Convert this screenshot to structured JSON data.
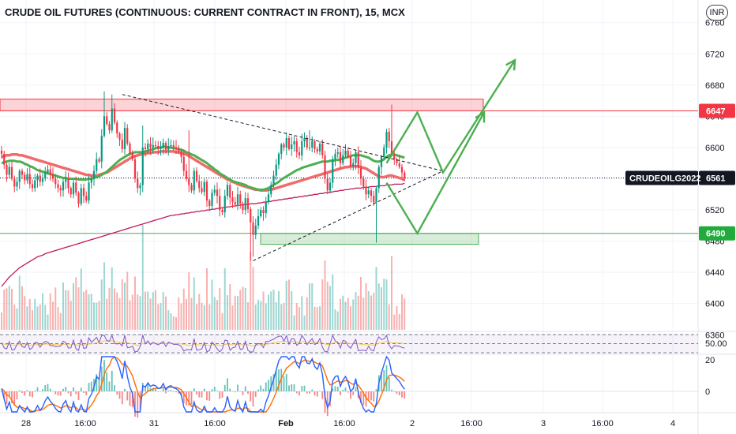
{
  "chart_data": {
    "type": "candlestick",
    "title": "CRUDE OIL FUTURES (CONTINUOUS: CURRENT CONTRACT IN FRONT), 15, MCX",
    "currency": "INR",
    "symbol_label": "CRUDEOILG2022",
    "last_price": 6561,
    "ylim": [
      6332,
      6787
    ],
    "y_ticks": [
      6760,
      6720,
      6680,
      6640,
      6600,
      6560,
      6520,
      6480,
      6440,
      6400,
      6360
    ],
    "price_badges": [
      {
        "label": "6647",
        "value": 6647,
        "color": "#f23645"
      },
      {
        "label": "6561",
        "value": 6561,
        "color": "#131722"
      },
      {
        "label": "6490",
        "value": 6490,
        "color": "#22ab3d"
      }
    ],
    "x_ticks": [
      "28",
      "16:00",
      "31",
      "16:00",
      "Feb",
      "16:00",
      "2",
      "16:00",
      "3",
      "16:00",
      "4"
    ],
    "zones": [
      {
        "name": "resistance",
        "low": 6647,
        "high": 6662,
        "color": "#f23645"
      },
      {
        "name": "support",
        "low": 6476,
        "high": 6490,
        "color": "#4caf50"
      }
    ],
    "price_closes": [
      6592,
      6578,
      6565,
      6575,
      6560,
      6550,
      6556,
      6570,
      6565,
      6558,
      6566,
      6553,
      6548,
      6558,
      6564,
      6556,
      6560,
      6568,
      6572,
      6565,
      6560,
      6553,
      6548,
      6545,
      6556,
      6560,
      6548,
      6540,
      6555,
      6542,
      6528,
      6548,
      6538,
      6532,
      6555,
      6560,
      6570,
      6585,
      6582,
      6615,
      6640,
      6630,
      6622,
      6650,
      6632,
      6618,
      6610,
      6598,
      6625,
      6605,
      6592,
      6585,
      6560,
      6548,
      6552,
      6600,
      6598,
      6605,
      6600,
      6603,
      6602,
      6598,
      6600,
      6606,
      6597,
      6602,
      6603,
      6600,
      6598,
      6595,
      6588,
      6570,
      6560,
      6552,
      6545,
      6570,
      6557,
      6548,
      6543,
      6556,
      6532,
      6525,
      6542,
      6546,
      6538,
      6520,
      6517,
      6538,
      6552,
      6536,
      6530,
      6527,
      6540,
      6528,
      6520,
      6535,
      6521,
      6504,
      6488,
      6500,
      6512,
      6520,
      6516,
      6530,
      6540,
      6552,
      6564,
      6578,
      6592,
      6604,
      6600,
      6612,
      6598,
      6604,
      6608,
      6594,
      6590,
      6608,
      6612,
      6600,
      6600,
      6608,
      6598,
      6595,
      6605,
      6590,
      6560,
      6545,
      6555,
      6585,
      6592,
      6594,
      6580,
      6590,
      6596,
      6588,
      6576,
      6580,
      6594,
      6574,
      6560,
      6550,
      6540,
      6545,
      6538,
      6530,
      6548,
      6575,
      6588,
      6600,
      6620,
      6608,
      6590,
      6585,
      6580,
      6575,
      6568,
      6561
    ],
    "sma_green": [
      6580,
      6581,
      6582,
      6583,
      6583,
      6583,
      6582,
      6582,
      6581,
      6579,
      6578,
      6576,
      6575,
      6573,
      6571,
      6570,
      6569,
      6568,
      6567,
      6566,
      6565,
      6564,
      6563,
      6562,
      6561,
      6561,
      6560,
      6560,
      6560,
      6560,
      6559,
      6559,
      6559,
      6559,
      6560,
      6560,
      6561,
      6562,
      6563,
      6565,
      6567,
      6569,
      6572,
      6575,
      6578,
      6581,
      6584,
      6586,
      6588,
      6590,
      6592,
      6593,
      6594,
      6594,
      6594,
      6594,
      6595,
      6596,
      6597,
      6598,
      6599,
      6600,
      6600,
      6601,
      6601,
      6600,
      6600,
      6599,
      6599,
      6598,
      6597,
      6596,
      6594,
      6593,
      6591,
      6590,
      6588,
      6586,
      6584,
      6582,
      6580,
      6577,
      6575,
      6572,
      6570,
      6567,
      6565,
      6563,
      6561,
      6559,
      6557,
      6556,
      6555,
      6554,
      6553,
      6552,
      6550,
      6549,
      6548,
      6547,
      6546,
      6546,
      6546,
      6547,
      6548,
      6550,
      6552,
      6554,
      6556,
      6559,
      6561,
      6563,
      6565,
      6567,
      6569,
      6571,
      6572,
      6574,
      6575,
      6576,
      6577,
      6578,
      6579,
      6580,
      6581,
      6582,
      6582,
      6582,
      6583,
      6583,
      6584,
      6584,
      6585,
      6586,
      6587,
      6588,
      6589,
      6590,
      6590,
      6590,
      6590,
      6589,
      6588,
      6587,
      6585,
      6583,
      6582,
      6582,
      6583,
      6585,
      6588,
      6590,
      6591,
      6591,
      6590,
      6589,
      6588,
      6587
    ],
    "sma_red": [
      6588,
      6589,
      6590,
      6590,
      6591,
      6591,
      6591,
      6590,
      6590,
      6589,
      6588,
      6587,
      6586,
      6585,
      6584,
      6583,
      6582,
      6581,
      6580,
      6579,
      6578,
      6577,
      6576,
      6575,
      6574,
      6573,
      6572,
      6571,
      6570,
      6569,
      6568,
      6567,
      6566,
      6565,
      6565,
      6564,
      6564,
      6564,
      6565,
      6566,
      6567,
      6568,
      6570,
      6572,
      6574,
      6576,
      6578,
      6580,
      6582,
      6584,
      6586,
      6588,
      6589,
      6590,
      6591,
      6592,
      6592,
      6593,
      6593,
      6594,
      6594,
      6594,
      6595,
      6595,
      6595,
      6595,
      6595,
      6595,
      6594,
      6594,
      6593,
      6592,
      6591,
      6589,
      6587,
      6585,
      6583,
      6581,
      6579,
      6577,
      6575,
      6573,
      6571,
      6569,
      6567,
      6565,
      6563,
      6561,
      6559,
      6558,
      6556,
      6555,
      6553,
      6552,
      6551,
      6550,
      6549,
      6548,
      6547,
      6546,
      6546,
      6545,
      6545,
      6545,
      6546,
      6546,
      6547,
      6548,
      6549,
      6550,
      6551,
      6552,
      6553,
      6554,
      6555,
      6556,
      6557,
      6558,
      6559,
      6560,
      6561,
      6562,
      6563,
      6564,
      6565,
      6566,
      6567,
      6568,
      6569,
      6570,
      6571,
      6572,
      6573,
      6574,
      6575,
      6575,
      6576,
      6576,
      6576,
      6576,
      6575,
      6574,
      6573,
      6571,
      6569,
      6567,
      6565,
      6563,
      6562,
      6562,
      6563,
      6564,
      6564,
      6563,
      6562,
      6561,
      6560,
      6558
    ],
    "sma_dark": [
      6422,
      6426,
      6430,
      6434,
      6437,
      6440,
      6443,
      6446,
      6448,
      6450,
      6452,
      6454,
      6456,
      6458,
      6460,
      6461,
      6462,
      6464,
      6465,
      6466,
      6467,
      6468,
      6469,
      6470,
      6471,
      6472,
      6473,
      6474,
      6475,
      6476,
      6477,
      6478,
      6479,
      6480,
      6481,
      6482,
      6483,
      6484,
      6485,
      6486,
      6487,
      6488,
      6489,
      6490,
      6491,
      6492,
      6493,
      6494,
      6495,
      6496,
      6497,
      6498,
      6499,
      6500,
      6501,
      6502,
      6503,
      6504,
      6505,
      6506,
      6507,
      6508,
      6509,
      6510,
      6511,
      6512,
      6513,
      6513,
      6514,
      6514,
      6515,
      6515,
      6516,
      6516,
      6517,
      6517,
      6518,
      6518,
      6519,
      6519,
      6520,
      6520,
      6521,
      6521,
      6522,
      6522,
      6523,
      6523,
      6524,
      6524,
      6525,
      6525,
      6526,
      6526,
      6527,
      6527,
      6527,
      6528,
      6528,
      6528,
      6529,
      6529,
      6530,
      6530,
      6531,
      6531,
      6532,
      6532,
      6533,
      6533,
      6534,
      6534,
      6535,
      6535,
      6536,
      6536,
      6537,
      6537,
      6538,
      6538,
      6539,
      6539,
      6540,
      6540,
      6541,
      6541,
      6542,
      6542,
      6543,
      6543,
      6544,
      6544,
      6545,
      6545,
      6546,
      6546,
      6547,
      6547,
      6548,
      6548,
      6548,
      6549,
      6549,
      6549,
      6550,
      6550,
      6550,
      6551,
      6551,
      6551,
      6552,
      6552,
      6552,
      6553,
      6553,
      6553,
      6553,
      6554
    ],
    "rsi_levels": {
      "upper": 70,
      "middle": 50,
      "lower": 30
    },
    "rsi_label": "50.00",
    "macd_ticks": [
      "20",
      "0"
    ],
    "drawings": [
      {
        "name": "upper-trendline",
        "points": [
          [
            "bar",
            47,
            6668
          ],
          [
            "bar",
            172,
            6570
          ]
        ]
      },
      {
        "name": "lower-trendline",
        "points": [
          [
            "bar",
            98,
            6455
          ],
          [
            "bar",
            172,
            6570
          ]
        ]
      },
      {
        "name": "bullish-path",
        "points": [
          [
            "bar",
            150,
            6580
          ],
          [
            "bar",
            162,
            6645
          ],
          [
            "bar",
            172,
            6568
          ],
          [
            "bar",
            200,
            6712
          ]
        ]
      },
      {
        "name": "bearish-path",
        "points": [
          [
            "bar",
            150,
            6555
          ],
          [
            "bar",
            162,
            6490
          ],
          [
            "bar",
            188,
            6645
          ]
        ]
      }
    ]
  }
}
